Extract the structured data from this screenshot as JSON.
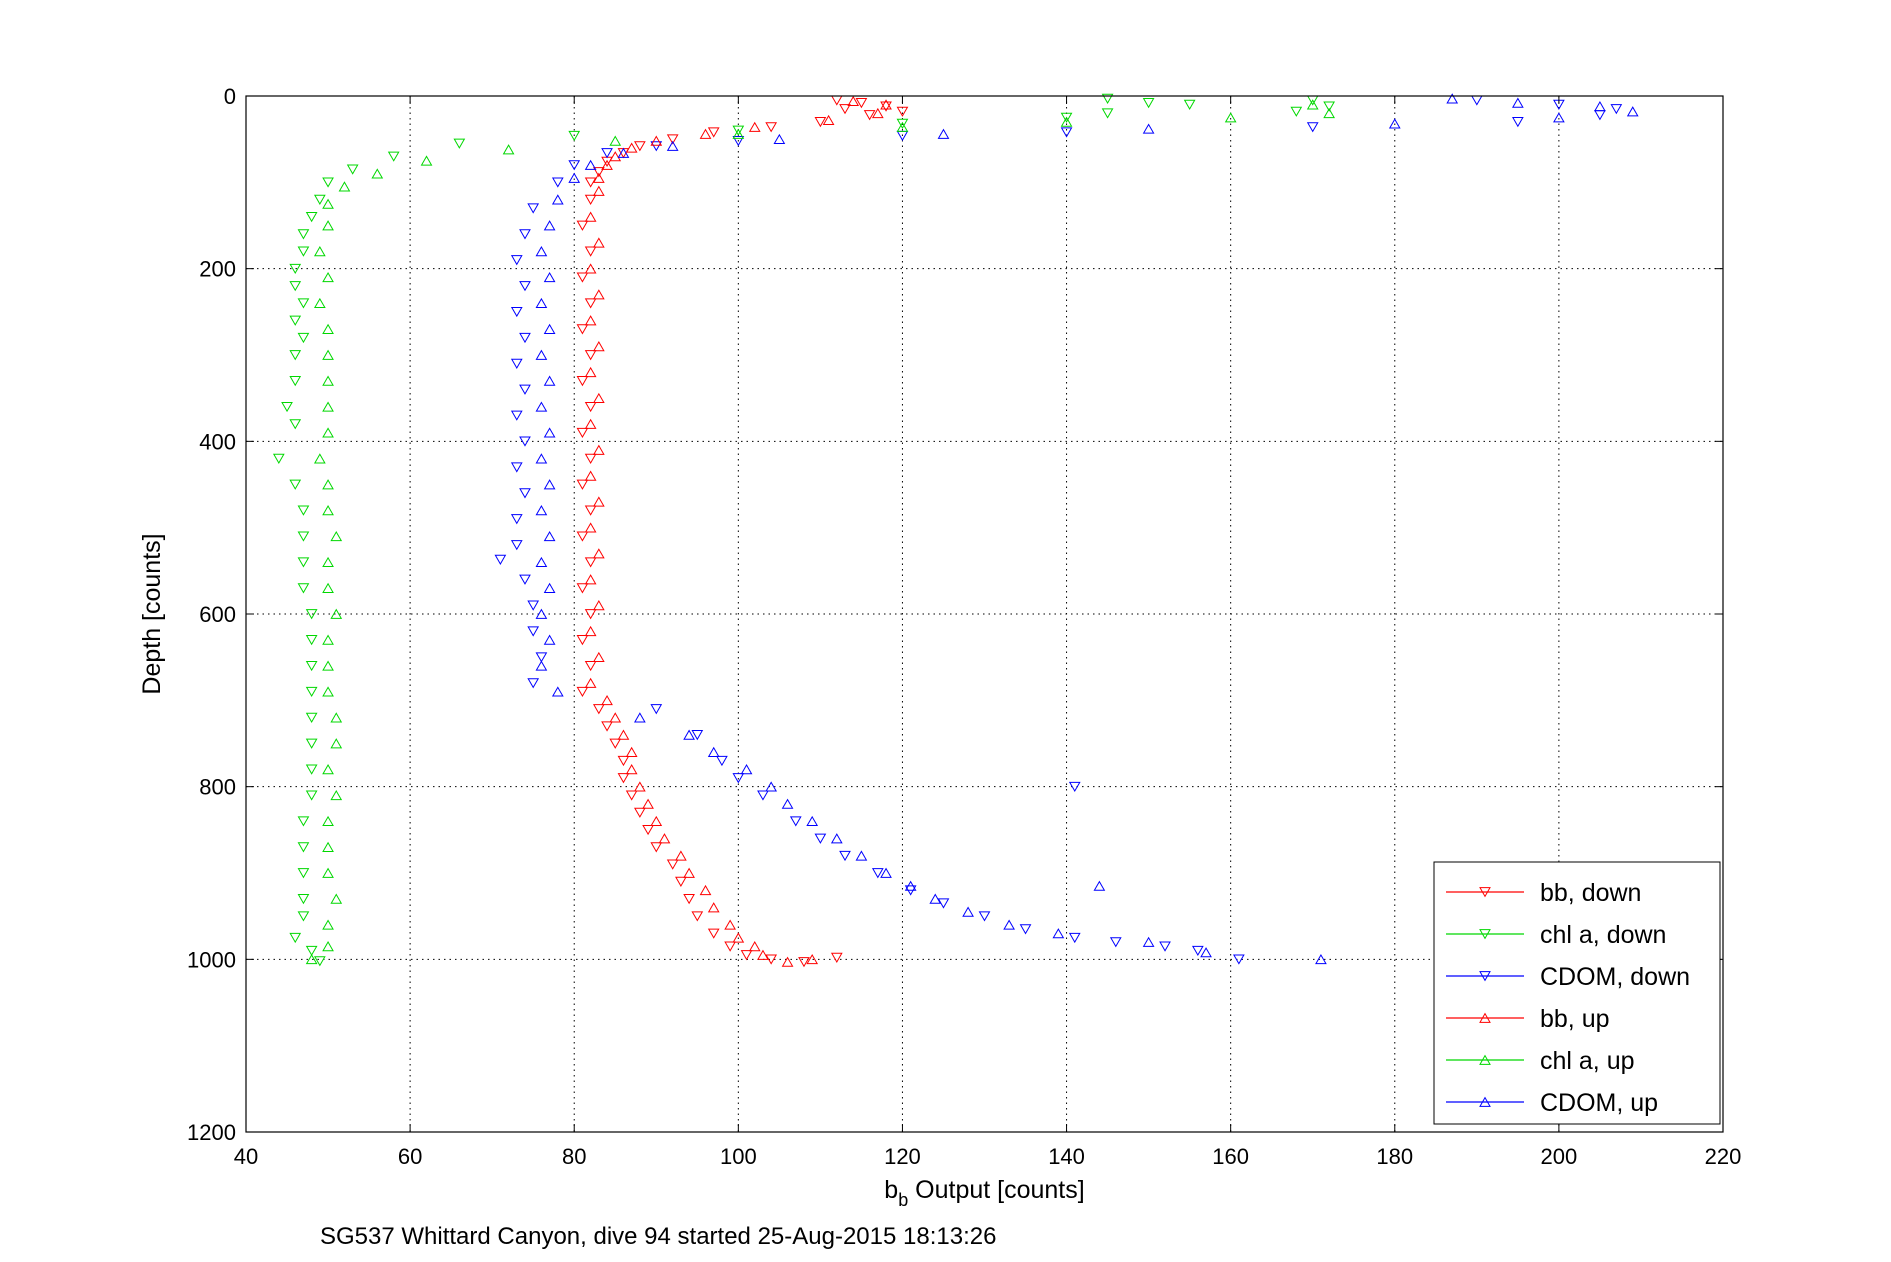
{
  "chart_data": {
    "type": "scatter",
    "xlabel_main": "b",
    "xlabel_sub": "b",
    "xlabel_rest": " Output [counts]",
    "ylabel": "Depth [counts]",
    "caption": "SG537 Whittard Canyon, dive 94 started 25-Aug-2015 18:13:26",
    "xlim": [
      40,
      220
    ],
    "ylim": [
      0,
      1200
    ],
    "y_reversed": true,
    "grid": true,
    "legend_position": "bottom-right",
    "x_ticks": [
      "40",
      "60",
      "80",
      "100",
      "120",
      "140",
      "160",
      "180",
      "200",
      "220"
    ],
    "y_ticks": [
      "0",
      "200",
      "400",
      "600",
      "800",
      "1000",
      "1200"
    ],
    "series": [
      {
        "name": "bb, down",
        "color": "#ff0000",
        "marker": "triangle-down",
        "points": [
          [
            112,
            5
          ],
          [
            115,
            8
          ],
          [
            118,
            12
          ],
          [
            120,
            18
          ],
          [
            116,
            22
          ],
          [
            113,
            15
          ],
          [
            110,
            30
          ],
          [
            104,
            36
          ],
          [
            97,
            42
          ],
          [
            92,
            50
          ],
          [
            88,
            58
          ],
          [
            86,
            66
          ],
          [
            84,
            76
          ],
          [
            83,
            88
          ],
          [
            82,
            100
          ],
          [
            82,
            120
          ],
          [
            81,
            150
          ],
          [
            82,
            180
          ],
          [
            81,
            210
          ],
          [
            82,
            240
          ],
          [
            81,
            270
          ],
          [
            82,
            300
          ],
          [
            81,
            330
          ],
          [
            82,
            360
          ],
          [
            81,
            390
          ],
          [
            82,
            420
          ],
          [
            81,
            450
          ],
          [
            82,
            480
          ],
          [
            81,
            510
          ],
          [
            82,
            540
          ],
          [
            81,
            570
          ],
          [
            82,
            600
          ],
          [
            81,
            630
          ],
          [
            82,
            660
          ],
          [
            81,
            690
          ],
          [
            83,
            710
          ],
          [
            84,
            730
          ],
          [
            85,
            750
          ],
          [
            86,
            770
          ],
          [
            86,
            790
          ],
          [
            87,
            810
          ],
          [
            88,
            830
          ],
          [
            89,
            850
          ],
          [
            90,
            870
          ],
          [
            92,
            890
          ],
          [
            93,
            910
          ],
          [
            94,
            930
          ],
          [
            95,
            950
          ],
          [
            97,
            970
          ],
          [
            99,
            985
          ],
          [
            101,
            995
          ],
          [
            104,
            1000
          ],
          [
            108,
            1003
          ],
          [
            112,
            998
          ]
        ]
      },
      {
        "name": "chl a, down",
        "color": "#00d800",
        "marker": "triangle-down",
        "points": [
          [
            145,
            3
          ],
          [
            150,
            8
          ],
          [
            155,
            10
          ],
          [
            170,
            5
          ],
          [
            172,
            12
          ],
          [
            168,
            18
          ],
          [
            145,
            20
          ],
          [
            140,
            25
          ],
          [
            120,
            32
          ],
          [
            100,
            40
          ],
          [
            80,
            46
          ],
          [
            66,
            55
          ],
          [
            58,
            70
          ],
          [
            53,
            85
          ],
          [
            50,
            100
          ],
          [
            49,
            120
          ],
          [
            48,
            140
          ],
          [
            47,
            160
          ],
          [
            47,
            180
          ],
          [
            46,
            200
          ],
          [
            46,
            220
          ],
          [
            47,
            240
          ],
          [
            46,
            260
          ],
          [
            47,
            280
          ],
          [
            46,
            300
          ],
          [
            46,
            330
          ],
          [
            45,
            360
          ],
          [
            46,
            380
          ],
          [
            44,
            420
          ],
          [
            46,
            450
          ],
          [
            47,
            480
          ],
          [
            47,
            510
          ],
          [
            47,
            540
          ],
          [
            47,
            570
          ],
          [
            48,
            600
          ],
          [
            48,
            630
          ],
          [
            48,
            660
          ],
          [
            48,
            690
          ],
          [
            48,
            720
          ],
          [
            48,
            750
          ],
          [
            48,
            780
          ],
          [
            48,
            810
          ],
          [
            47,
            840
          ],
          [
            47,
            870
          ],
          [
            47,
            900
          ],
          [
            47,
            930
          ],
          [
            47,
            950
          ],
          [
            46,
            975
          ],
          [
            48,
            990
          ],
          [
            49,
            1002
          ]
        ]
      },
      {
        "name": "CDOM, down",
        "color": "#0000ff",
        "marker": "triangle-down",
        "points": [
          [
            190,
            5
          ],
          [
            200,
            10
          ],
          [
            207,
            15
          ],
          [
            205,
            22
          ],
          [
            195,
            30
          ],
          [
            170,
            36
          ],
          [
            140,
            42
          ],
          [
            120,
            46
          ],
          [
            100,
            52
          ],
          [
            90,
            58
          ],
          [
            84,
            66
          ],
          [
            80,
            80
          ],
          [
            78,
            100
          ],
          [
            75,
            130
          ],
          [
            74,
            160
          ],
          [
            73,
            190
          ],
          [
            74,
            220
          ],
          [
            73,
            250
          ],
          [
            74,
            280
          ],
          [
            73,
            310
          ],
          [
            74,
            340
          ],
          [
            73,
            370
          ],
          [
            74,
            400
          ],
          [
            73,
            430
          ],
          [
            74,
            460
          ],
          [
            73,
            490
          ],
          [
            73,
            520
          ],
          [
            71,
            537
          ],
          [
            74,
            560
          ],
          [
            75,
            590
          ],
          [
            75,
            620
          ],
          [
            76,
            650
          ],
          [
            75,
            680
          ],
          [
            90,
            710
          ],
          [
            95,
            740
          ],
          [
            98,
            770
          ],
          [
            100,
            790
          ],
          [
            103,
            810
          ],
          [
            107,
            840
          ],
          [
            110,
            860
          ],
          [
            113,
            880
          ],
          [
            117,
            900
          ],
          [
            121,
            920
          ],
          [
            125,
            935
          ],
          [
            130,
            950
          ],
          [
            135,
            965
          ],
          [
            141,
            975
          ],
          [
            146,
            980
          ],
          [
            152,
            985
          ],
          [
            156,
            990
          ],
          [
            161,
            1000
          ],
          [
            141,
            800
          ]
        ]
      },
      {
        "name": "bb, up",
        "color": "#ff0000",
        "marker": "triangle-up",
        "points": [
          [
            114,
            6
          ],
          [
            118,
            10
          ],
          [
            117,
            20
          ],
          [
            111,
            28
          ],
          [
            102,
            36
          ],
          [
            96,
            44
          ],
          [
            90,
            52
          ],
          [
            87,
            60
          ],
          [
            85,
            70
          ],
          [
            84,
            80
          ],
          [
            83,
            95
          ],
          [
            83,
            110
          ],
          [
            82,
            140
          ],
          [
            83,
            170
          ],
          [
            82,
            200
          ],
          [
            83,
            230
          ],
          [
            82,
            260
          ],
          [
            83,
            290
          ],
          [
            82,
            320
          ],
          [
            83,
            350
          ],
          [
            82,
            380
          ],
          [
            83,
            410
          ],
          [
            82,
            440
          ],
          [
            83,
            470
          ],
          [
            82,
            500
          ],
          [
            83,
            530
          ],
          [
            82,
            560
          ],
          [
            83,
            590
          ],
          [
            82,
            620
          ],
          [
            83,
            650
          ],
          [
            82,
            680
          ],
          [
            84,
            700
          ],
          [
            85,
            720
          ],
          [
            86,
            740
          ],
          [
            87,
            760
          ],
          [
            87,
            780
          ],
          [
            88,
            800
          ],
          [
            89,
            820
          ],
          [
            90,
            840
          ],
          [
            91,
            860
          ],
          [
            93,
            880
          ],
          [
            94,
            900
          ],
          [
            96,
            920
          ],
          [
            97,
            940
          ],
          [
            99,
            960
          ],
          [
            100,
            975
          ],
          [
            102,
            985
          ],
          [
            103,
            995
          ],
          [
            106,
            1003
          ],
          [
            109,
            1000
          ]
        ]
      },
      {
        "name": "chl a, up",
        "color": "#00d800",
        "marker": "triangle-up",
        "points": [
          [
            170,
            10
          ],
          [
            172,
            20
          ],
          [
            160,
            25
          ],
          [
            140,
            30
          ],
          [
            120,
            36
          ],
          [
            100,
            44
          ],
          [
            85,
            52
          ],
          [
            72,
            62
          ],
          [
            62,
            75
          ],
          [
            56,
            90
          ],
          [
            52,
            105
          ],
          [
            50,
            125
          ],
          [
            50,
            150
          ],
          [
            49,
            180
          ],
          [
            50,
            210
          ],
          [
            49,
            240
          ],
          [
            50,
            270
          ],
          [
            50,
            300
          ],
          [
            50,
            330
          ],
          [
            50,
            360
          ],
          [
            50,
            390
          ],
          [
            49,
            420
          ],
          [
            50,
            450
          ],
          [
            50,
            480
          ],
          [
            51,
            510
          ],
          [
            50,
            540
          ],
          [
            50,
            570
          ],
          [
            51,
            600
          ],
          [
            50,
            630
          ],
          [
            50,
            660
          ],
          [
            50,
            690
          ],
          [
            51,
            720
          ],
          [
            51,
            750
          ],
          [
            50,
            780
          ],
          [
            51,
            810
          ],
          [
            50,
            840
          ],
          [
            50,
            870
          ],
          [
            50,
            900
          ],
          [
            51,
            930
          ],
          [
            50,
            960
          ],
          [
            50,
            985
          ],
          [
            48,
            1000
          ]
        ]
      },
      {
        "name": "CDOM, up",
        "color": "#0000ff",
        "marker": "triangle-up",
        "points": [
          [
            187,
            3
          ],
          [
            195,
            8
          ],
          [
            205,
            12
          ],
          [
            209,
            18
          ],
          [
            200,
            25
          ],
          [
            180,
            32
          ],
          [
            150,
            38
          ],
          [
            125,
            44
          ],
          [
            105,
            50
          ],
          [
            92,
            58
          ],
          [
            86,
            66
          ],
          [
            82,
            80
          ],
          [
            80,
            95
          ],
          [
            78,
            120
          ],
          [
            77,
            150
          ],
          [
            76,
            180
          ],
          [
            77,
            210
          ],
          [
            76,
            240
          ],
          [
            77,
            270
          ],
          [
            76,
            300
          ],
          [
            77,
            330
          ],
          [
            76,
            360
          ],
          [
            77,
            390
          ],
          [
            76,
            420
          ],
          [
            77,
            450
          ],
          [
            76,
            480
          ],
          [
            77,
            510
          ],
          [
            76,
            540
          ],
          [
            77,
            570
          ],
          [
            76,
            600
          ],
          [
            77,
            630
          ],
          [
            76,
            660
          ],
          [
            78,
            690
          ],
          [
            88,
            720
          ],
          [
            94,
            740
          ],
          [
            97,
            760
          ],
          [
            101,
            780
          ],
          [
            104,
            800
          ],
          [
            106,
            820
          ],
          [
            109,
            840
          ],
          [
            112,
            860
          ],
          [
            115,
            880
          ],
          [
            118,
            900
          ],
          [
            121,
            915
          ],
          [
            124,
            930
          ],
          [
            128,
            945
          ],
          [
            133,
            960
          ],
          [
            139,
            970
          ],
          [
            144,
            915
          ],
          [
            150,
            980
          ],
          [
            157,
            992
          ],
          [
            171,
            1000
          ]
        ]
      }
    ]
  }
}
